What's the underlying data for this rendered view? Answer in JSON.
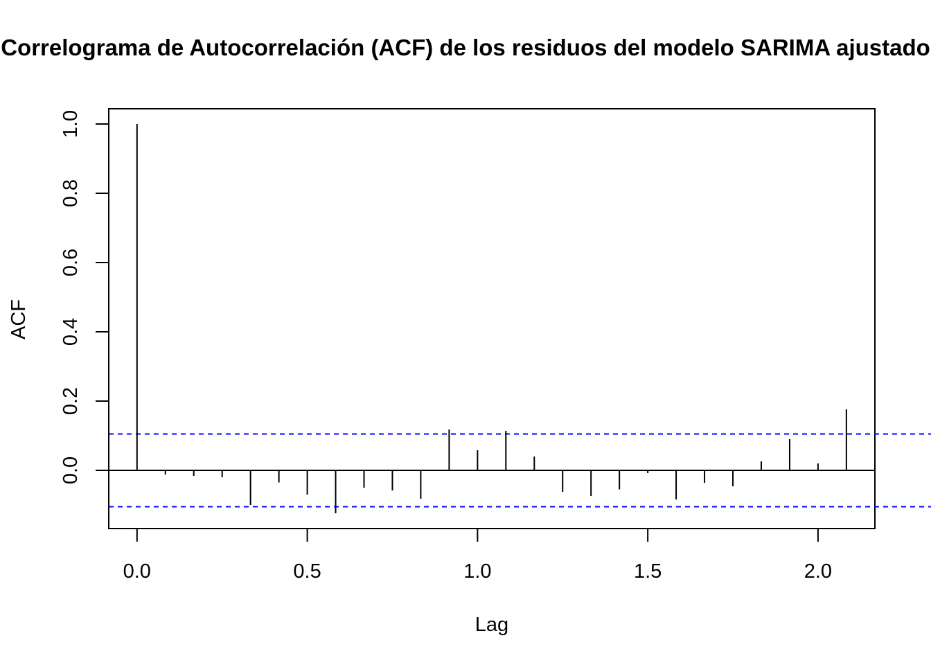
{
  "chart_data": {
    "type": "bar",
    "subtype": "acf-correlogram",
    "title": "Correlograma de Autocorrelación (ACF) de los residuos del modelo SARIMA ajustado",
    "xlabel": "Lag",
    "ylabel": "ACF",
    "xlim": [
      -0.083,
      2.167
    ],
    "ylim": [
      -0.168,
      1.044
    ],
    "x_ticks": [
      "0.0",
      "0.5",
      "1.0",
      "1.5",
      "2.0"
    ],
    "y_ticks": [
      "0.0",
      "0.2",
      "0.4",
      "0.6",
      "0.8",
      "1.0"
    ],
    "confidence_bound": 0.105,
    "confidence_color": "#0000ff",
    "bar_color": "#000000",
    "grid": false,
    "legend": "none",
    "lags": [
      0.0,
      0.0833,
      0.1667,
      0.25,
      0.3333,
      0.4167,
      0.5,
      0.5833,
      0.6667,
      0.75,
      0.8333,
      0.9167,
      1.0,
      1.0833,
      1.1667,
      1.25,
      1.3333,
      1.4167,
      1.5,
      1.5833,
      1.6667,
      1.75,
      1.8333,
      1.9167,
      2.0,
      2.0833
    ],
    "values": [
      1.0,
      -0.012,
      -0.016,
      -0.02,
      -0.1,
      -0.035,
      -0.07,
      -0.124,
      -0.05,
      -0.058,
      -0.082,
      0.118,
      0.058,
      0.114,
      0.04,
      -0.062,
      -0.074,
      -0.055,
      -0.008,
      -0.084,
      -0.036,
      -0.046,
      0.026,
      0.09,
      0.02,
      0.176
    ]
  }
}
